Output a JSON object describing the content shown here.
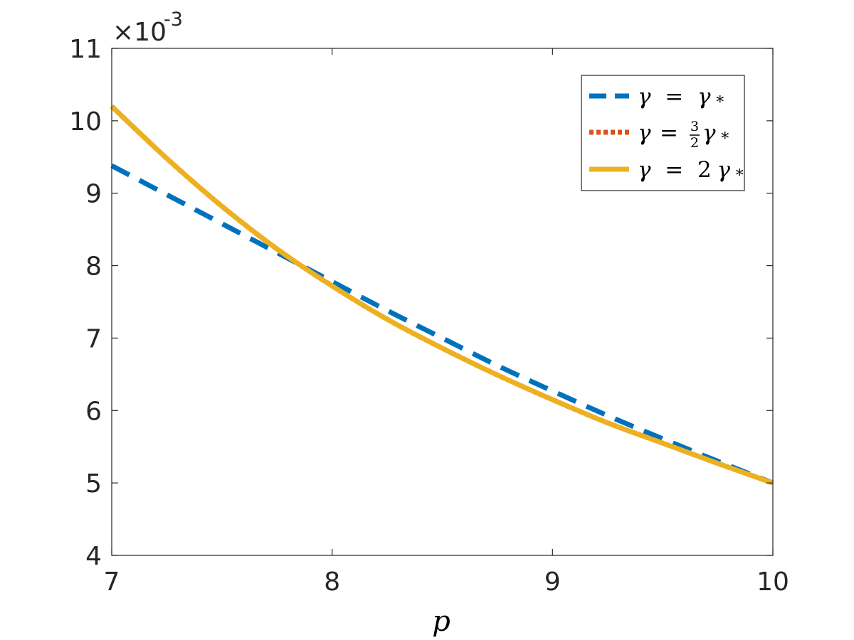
{
  "chart_data": {
    "type": "line",
    "xlabel": "p",
    "ylabel": "",
    "title": "",
    "xlim": [
      7,
      10
    ],
    "ylim": [
      4,
      11
    ],
    "xticks": [
      7,
      8,
      9,
      10
    ],
    "yticks": [
      4,
      5,
      6,
      7,
      8,
      9,
      10,
      11
    ],
    "y_multiplier": {
      "base": "×10",
      "exponent": "-3"
    },
    "grid": false,
    "legend_position": "top-right",
    "x": [
      7.0,
      7.25,
      7.5,
      7.75,
      8.0,
      8.25,
      8.5,
      8.75,
      9.0,
      9.25,
      9.5,
      9.75,
      10.0
    ],
    "series": [
      {
        "name": "γ = γ*",
        "legend": {
          "lhs": "γ",
          "eq": "=",
          "coef": "",
          "rhs": "γ",
          "sub": "*"
        },
        "style": "dashed",
        "color": "#0072BD",
        "values": [
          9.38,
          8.98,
          8.58,
          8.18,
          7.78,
          7.38,
          7.0,
          6.62,
          6.27,
          5.93,
          5.61,
          5.3,
          5.0
        ]
      },
      {
        "name": "γ = 3/2 γ*",
        "legend": {
          "lhs": "γ",
          "eq": "=",
          "coef_num": "3",
          "coef_den": "2",
          "rhs": "γ",
          "sub": "*"
        },
        "style": "dotted",
        "color": "#D95319",
        "values": [
          10.2,
          9.48,
          8.82,
          8.23,
          7.72,
          7.26,
          6.86,
          6.49,
          6.15,
          5.83,
          5.55,
          5.27,
          5.0
        ]
      },
      {
        "name": "γ = 2γ*",
        "legend": {
          "lhs": "γ",
          "eq": "=",
          "coef": "2",
          "rhs": "γ",
          "sub": "*"
        },
        "style": "solid",
        "color": "#EDB120",
        "values": [
          10.2,
          9.48,
          8.82,
          8.23,
          7.72,
          7.26,
          6.86,
          6.49,
          6.15,
          5.83,
          5.55,
          5.27,
          5.0
        ]
      }
    ]
  }
}
